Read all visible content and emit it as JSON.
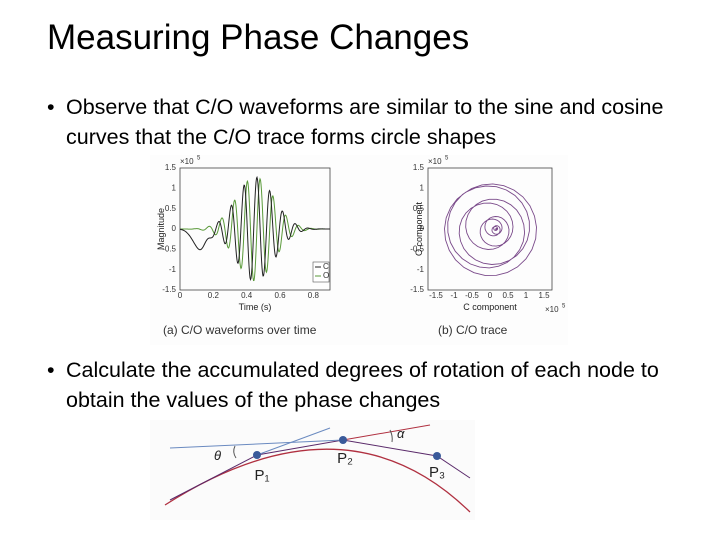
{
  "title": "Measuring Phase Changes",
  "bullets": [
    "Observe that C/O waveforms are similar to the sine and cosine curves that the C/O trace forms circle shapes",
    "Calculate the accumulated degrees of rotation of each node to obtain the values of the phase changes"
  ],
  "figure_a": {
    "caption": "(a) C/O waveforms over time",
    "x_label": "Time (s)",
    "y_label": "Magnitude",
    "scale": "×10",
    "scale_exp": "5",
    "yticks": [
      "1.5",
      "1",
      "0.5",
      "0",
      "-0.5",
      "-1",
      "-1.5"
    ],
    "xticks": [
      "0",
      "0.2",
      "0.4",
      "0.6",
      "0.8"
    ],
    "legend": [
      "C",
      "O"
    ]
  },
  "figure_b": {
    "caption": "(b) C/O trace",
    "x_label": "C component",
    "y_label": "O component",
    "scale": "×10",
    "scale_exp": "5",
    "x_scale": "×10",
    "x_scale_exp": "5",
    "yticks": [
      "1.5",
      "1",
      "0.5",
      "0",
      "-0.5",
      "-1",
      "-1.5"
    ],
    "xticks": [
      "-1.5",
      "-1",
      "-0.5",
      "0",
      "0.5",
      "1",
      "1.5"
    ]
  },
  "figure_c": {
    "theta": "θ",
    "alpha": "α",
    "points": [
      "P₁",
      "P₂",
      "P₃"
    ]
  }
}
